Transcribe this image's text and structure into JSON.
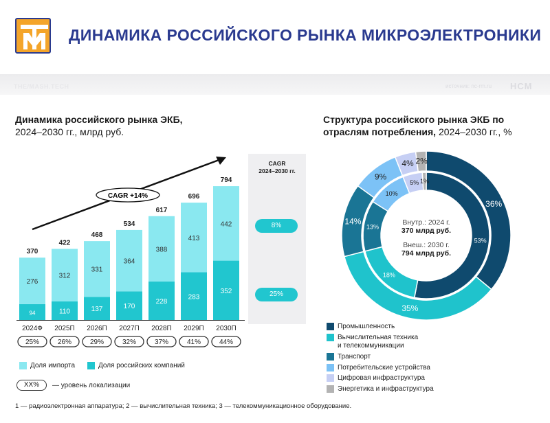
{
  "header": {
    "title": "ДИНАМИКА РОССИЙСКОГО РЫНКА МИКРОЭЛЕКТРОНИКИ",
    "band_left": "THE/MASH.TECH",
    "band_right": "источник: nc-rm.ru",
    "band_logo": "НСМ"
  },
  "colors": {
    "title": "#2a3a8f",
    "logo_orange": "#f4a52a",
    "import": "#8ae8f0",
    "domestic": "#21c6cf",
    "industry": "#0f4a6e",
    "computing": "#1fc3cc",
    "transport": "#1a7595",
    "consumer": "#7cc2f6",
    "digital": "#c6cff4",
    "energy": "#b3b3b3"
  },
  "left_title": {
    "bold": "Динамика российского рынка ЭКБ,",
    "normal": "2024–2030 гг., млрд руб."
  },
  "right_title": {
    "bold_line1": "Структура российского рынка ЭКБ по",
    "bold_line2": "отраслям потребления,",
    "normal": " 2024–2030 гг., %"
  },
  "cagr_arrow_label": "CAGR +14%",
  "cagr_column": {
    "head_line1": "CAGR",
    "head_line2": "2024–2030 гг.",
    "import_value": "8%",
    "domestic_value": "25%"
  },
  "chart_data": [
    {
      "type": "bar",
      "stacked": true,
      "categories": [
        "2024Ф",
        "2025П",
        "2026П",
        "2027П",
        "2028П",
        "2029П",
        "2030П"
      ],
      "series": [
        {
          "name": "Доля российских компаний",
          "values": [
            94,
            110,
            137,
            170,
            228,
            283,
            352
          ]
        },
        {
          "name": "Доля импорта",
          "values": [
            276,
            312,
            331,
            364,
            388,
            413,
            442
          ]
        }
      ],
      "totals": [
        370,
        422,
        468,
        534,
        617,
        696,
        794
      ],
      "localization": [
        "25%",
        "26%",
        "29%",
        "32%",
        "37%",
        "41%",
        "44%"
      ],
      "ylim": [
        0,
        800
      ]
    },
    {
      "type": "pie",
      "variant": "double-donut",
      "outer_ring": [
        {
          "name": "Промышленность",
          "value": 36,
          "label": "36%"
        },
        {
          "name": "Вычислительная техника и телекоммуникации",
          "value": 35,
          "label": "35%"
        },
        {
          "name": "Транспорт",
          "value": 14,
          "label": "14%"
        },
        {
          "name": "Потребительские устройства",
          "value": 9,
          "label": "9%"
        },
        {
          "name": "Цифровая инфраструктура",
          "value": 4,
          "label": "4%"
        },
        {
          "name": "Энергетика и инфраструктура",
          "value": 2,
          "label": "2%"
        }
      ],
      "inner_ring": [
        {
          "name": "Промышленность",
          "value": 53,
          "label": "53%"
        },
        {
          "name": "Вычислительная техника и телекоммуникации",
          "value": 18,
          "label": "18%"
        },
        {
          "name": "Транспорт",
          "value": 13,
          "label": "13%"
        },
        {
          "name": "Потребительские устройства",
          "value": 10,
          "label": "10%"
        },
        {
          "name": "Цифровая инфраструктура",
          "value": 5,
          "label": "5%"
        },
        {
          "name": "Энергетика и инфраструктура",
          "value": 1,
          "label": "1%"
        }
      ]
    }
  ],
  "donut_center": {
    "line1": "Внутр.: 2024 г.",
    "line2": "370 млрд руб.",
    "line3": "Внеш.: 2030 г.",
    "line4": "794 млрд руб."
  },
  "left_legend": {
    "import": "Доля импорта",
    "domestic": "Доля российских компаний",
    "pill_sample": "XX%",
    "pill_caption": "— уровень локализации"
  },
  "right_legend": {
    "industry": "Промышленность",
    "computing_line1": "Вычислительная техника",
    "computing_line2": "и телекоммуникации",
    "transport": "Транспорт",
    "consumer": "Потребительские устройства",
    "digital": "Цифровая инфраструктура",
    "energy": "Энергетика и инфраструктура"
  },
  "footnote": "1 — радиоэлектронная аппаратура; 2 — вычислительная техника; 3 — телекоммуникационное оборудование."
}
